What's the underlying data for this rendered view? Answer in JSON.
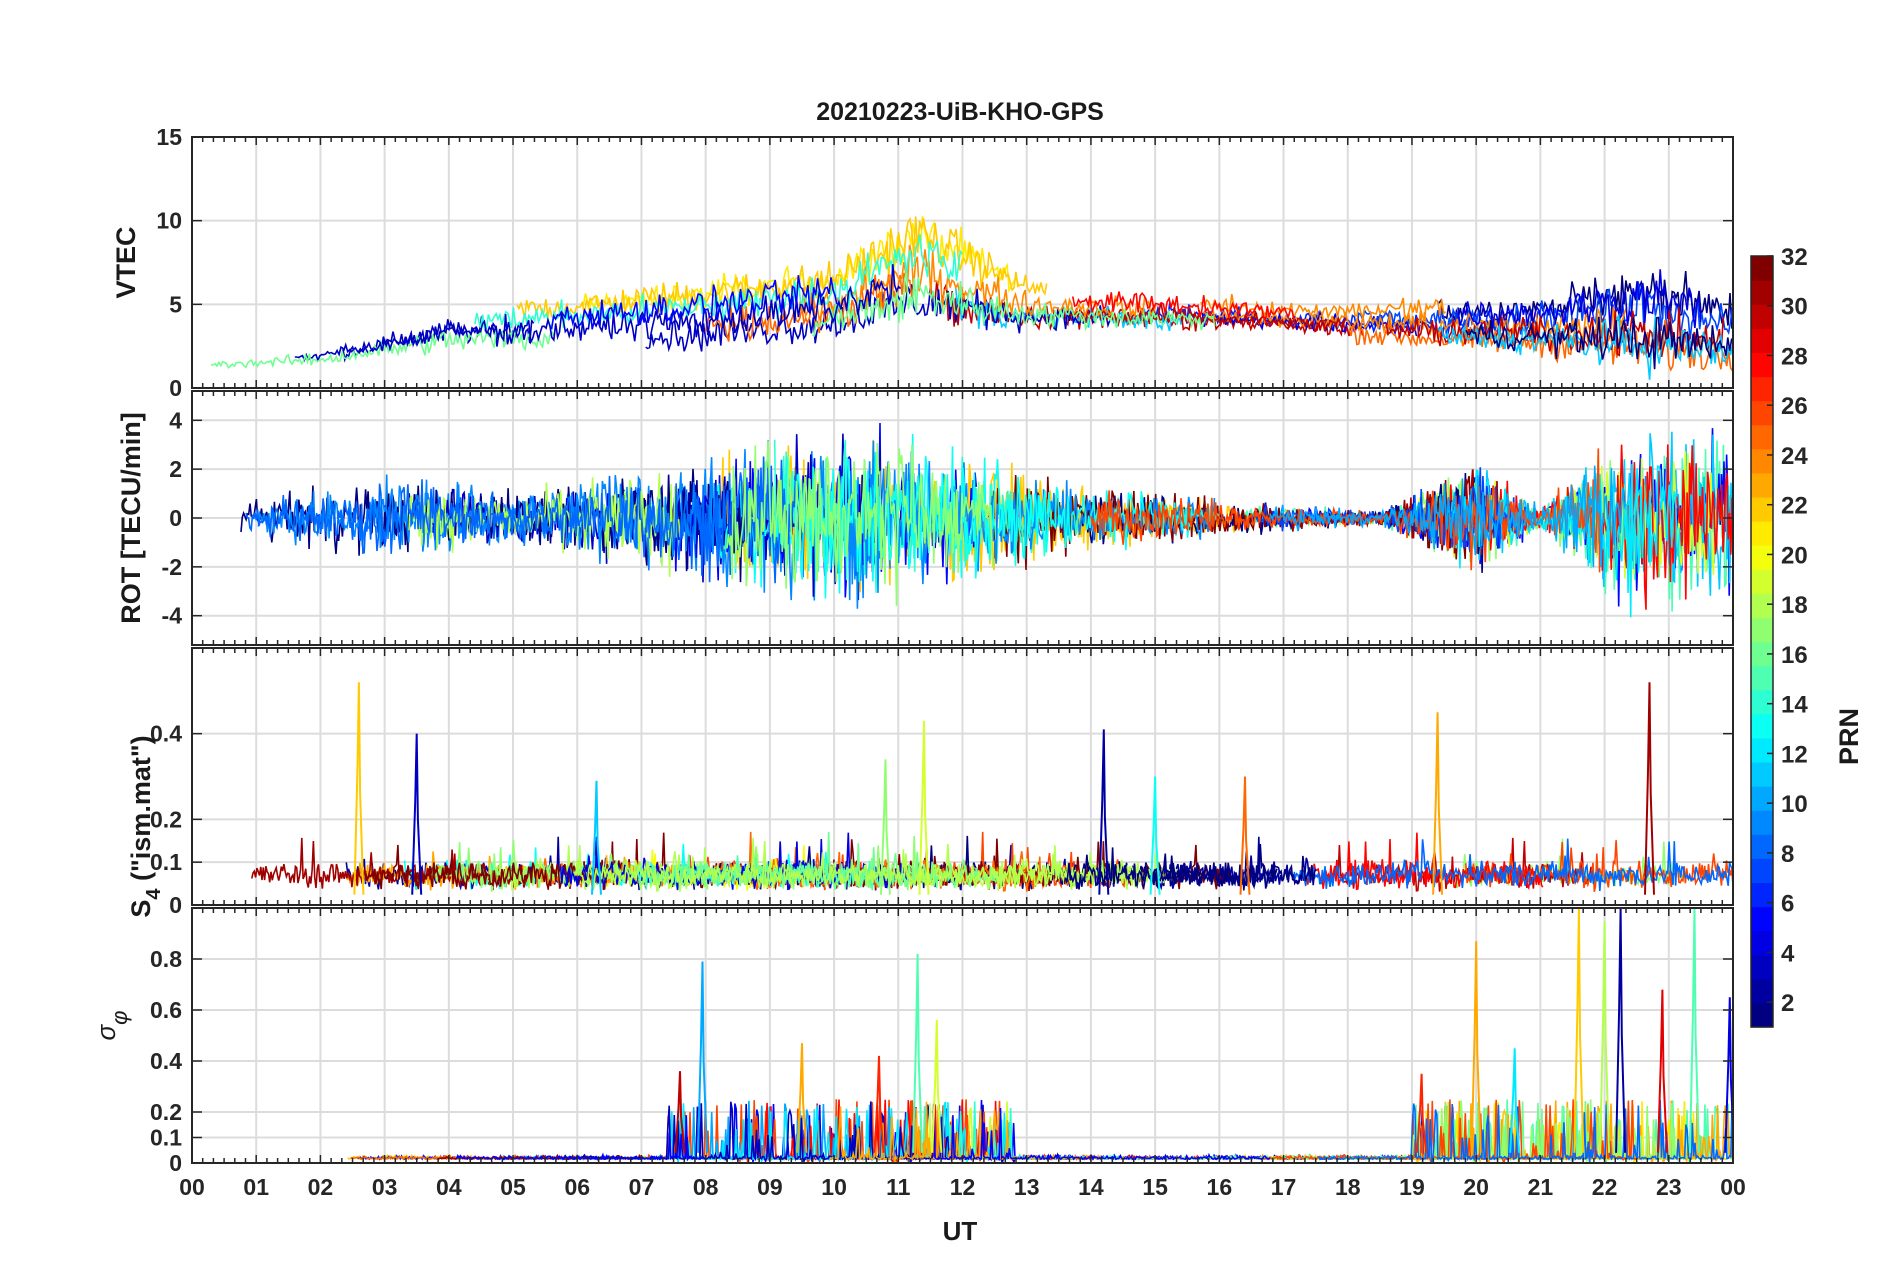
{
  "chart_data": {
    "type": "line",
    "title": "20210223-UiB-KHO-GPS",
    "xlabel": "UT",
    "x_tick_labels": [
      "00",
      "01",
      "02",
      "03",
      "04",
      "05",
      "06",
      "07",
      "08",
      "09",
      "10",
      "11",
      "12",
      "13",
      "14",
      "15",
      "16",
      "17",
      "18",
      "19",
      "20",
      "21",
      "22",
      "23",
      "00"
    ],
    "xlim_hours": [
      0,
      24
    ],
    "grid": true,
    "colorbar": {
      "label": "PRN",
      "colormap": "jet",
      "range": [
        1,
        32
      ],
      "tick_labels": [
        "2",
        "4",
        "6",
        "8",
        "10",
        "12",
        "14",
        "16",
        "18",
        "20",
        "22",
        "24",
        "26",
        "28",
        "30",
        "32"
      ],
      "colors": [
        "#00008f",
        "#0000d0",
        "#0020ff",
        "#0060ff",
        "#009fff",
        "#00dfff",
        "#20ffdf",
        "#60ff9f",
        "#9fff60",
        "#dfff20",
        "#ffdf00",
        "#ff9f00",
        "#ff6000",
        "#ff2000",
        "#df0000",
        "#800000"
      ]
    },
    "panels": [
      {
        "id": "vtec",
        "ylabel": "VTEC",
        "ylim": [
          0,
          15
        ],
        "yticks": [
          0,
          5,
          10,
          15
        ],
        "ytick_labels": [
          "0",
          "5",
          "10",
          "15"
        ],
        "envelope": [
          {
            "x": 0,
            "lo": 1.0,
            "hi": 2.0
          },
          {
            "x": 2,
            "lo": 1.0,
            "hi": 3.0
          },
          {
            "x": 4,
            "lo": 1.5,
            "hi": 5.5
          },
          {
            "x": 6,
            "lo": 1.5,
            "hi": 6.0
          },
          {
            "x": 8,
            "lo": 1.5,
            "hi": 7.0
          },
          {
            "x": 10,
            "lo": 2.0,
            "hi": 8.0
          },
          {
            "x": 11.3,
            "lo": 2.5,
            "hi": 11.5
          },
          {
            "x": 13,
            "lo": 3.0,
            "hi": 7.0
          },
          {
            "x": 15,
            "lo": 3.0,
            "hi": 6.5
          },
          {
            "x": 17,
            "lo": 3.0,
            "hi": 5.5
          },
          {
            "x": 19,
            "lo": 2.0,
            "hi": 6.0
          },
          {
            "x": 21,
            "lo": 1.5,
            "hi": 6.5
          },
          {
            "x": 22.7,
            "lo": 0.2,
            "hi": 9.0
          },
          {
            "x": 24,
            "lo": 0.5,
            "hi": 6.5
          }
        ]
      },
      {
        "id": "rot",
        "ylabel": "ROT [TECU/min]",
        "ylim": [
          -5.2,
          5.2
        ],
        "yticks": [
          -4,
          -2,
          0,
          2,
          4
        ],
        "ytick_labels": [
          "-4",
          "-2",
          "0",
          "2",
          "4"
        ],
        "envelope": [
          {
            "x": 0,
            "amp": 0.2
          },
          {
            "x": 1.5,
            "amp": 1.2
          },
          {
            "x": 3,
            "amp": 1.8
          },
          {
            "x": 5,
            "amp": 1.2
          },
          {
            "x": 7.5,
            "amp": 2.5
          },
          {
            "x": 10.5,
            "amp": 4.0
          },
          {
            "x": 12.5,
            "amp": 2.5
          },
          {
            "x": 14,
            "amp": 1.5
          },
          {
            "x": 17,
            "amp": 0.6
          },
          {
            "x": 18.5,
            "amp": 0.3
          },
          {
            "x": 20,
            "amp": 2.5
          },
          {
            "x": 21,
            "amp": 0.5
          },
          {
            "x": 22.5,
            "amp": 4.5
          },
          {
            "x": 24,
            "amp": 3.5
          }
        ]
      },
      {
        "id": "s4",
        "ylabel": "S4 (\"ism.mat\")",
        "ylabel_main": "S",
        "ylabel_sub": "4",
        "ylabel_rest": " (\"ism.mat\")",
        "ylim": [
          0,
          0.6
        ],
        "yticks": [
          0,
          0.1,
          0.2,
          0.4
        ],
        "ytick_labels": [
          "0",
          "0.1",
          "0.2",
          "0.4"
        ],
        "baseline": 0.07,
        "peaks": [
          {
            "x": 2.6,
            "y": 0.52,
            "prn": 22
          },
          {
            "x": 3.5,
            "y": 0.4,
            "prn": 3
          },
          {
            "x": 6.3,
            "y": 0.29,
            "prn": 11
          },
          {
            "x": 10.8,
            "y": 0.34,
            "prn": 17
          },
          {
            "x": 11.4,
            "y": 0.43,
            "prn": 19
          },
          {
            "x": 14.2,
            "y": 0.41,
            "prn": 2
          },
          {
            "x": 15.0,
            "y": 0.3,
            "prn": 13
          },
          {
            "x": 16.4,
            "y": 0.3,
            "prn": 25
          },
          {
            "x": 19.4,
            "y": 0.45,
            "prn": 23
          },
          {
            "x": 22.7,
            "y": 0.52,
            "prn": 31
          }
        ]
      },
      {
        "id": "sigma_phi",
        "ylabel": "σφ",
        "ylim": [
          0,
          1.0
        ],
        "yticks": [
          0,
          0.1,
          0.2,
          0.4,
          0.6,
          0.8
        ],
        "ytick_labels": [
          "0",
          "0.1",
          "0.2",
          "0.4",
          "0.6",
          "0.8"
        ],
        "peaks": [
          {
            "x": 7.6,
            "y": 0.36,
            "prn": 30
          },
          {
            "x": 7.95,
            "y": 0.79,
            "prn": 10
          },
          {
            "x": 9.5,
            "y": 0.47,
            "prn": 23
          },
          {
            "x": 10.7,
            "y": 0.42,
            "prn": 27
          },
          {
            "x": 11.3,
            "y": 0.82,
            "prn": 15
          },
          {
            "x": 11.6,
            "y": 0.56,
            "prn": 19
          },
          {
            "x": 19.15,
            "y": 0.35,
            "prn": 27
          },
          {
            "x": 20.0,
            "y": 0.87,
            "prn": 23
          },
          {
            "x": 20.6,
            "y": 0.45,
            "prn": 12
          },
          {
            "x": 21.6,
            "y": 1.0,
            "prn": 22
          },
          {
            "x": 22.0,
            "y": 0.95,
            "prn": 18
          },
          {
            "x": 22.25,
            "y": 1.0,
            "prn": 2
          },
          {
            "x": 22.9,
            "y": 0.68,
            "prn": 29
          },
          {
            "x": 23.4,
            "y": 1.0,
            "prn": 15
          },
          {
            "x": 23.95,
            "y": 0.65,
            "prn": 4
          }
        ]
      }
    ]
  }
}
